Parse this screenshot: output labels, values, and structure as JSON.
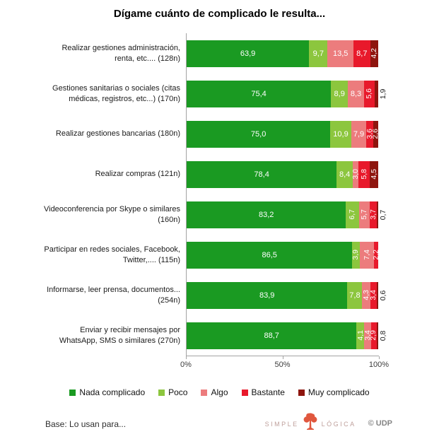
{
  "chart_data": {
    "type": "bar",
    "orientation": "horizontal-stacked",
    "title": "Dígame cuánto de complicado le resulta...",
    "categories": [
      "Realizar gestiones administración, renta, etc.... (128n)",
      "Gestiones sanitarias o sociales (citas médicas, registros, etc...) (170n)",
      "Realizar gestiones bancarias (180n)",
      "Realizar compras (121n)",
      "Videoconferencia por Skype o similares (160n)",
      "Participar en redes sociales, Facebook, Twitter,.... (115n)",
      "Informarse, leer prensa, documentos... (254n)",
      "Enviar y recibir mensajes por WhatsApp, SMS o similares (270n)"
    ],
    "series": [
      {
        "name": "Nada complicado",
        "key": "nada",
        "color": "#1a9a22",
        "values": [
          63.9,
          75.4,
          75.0,
          78.4,
          83.2,
          86.5,
          83.9,
          88.7
        ]
      },
      {
        "name": "Poco",
        "key": "poco",
        "color": "#8cc63e",
        "values": [
          9.7,
          8.9,
          10.9,
          8.4,
          6.7,
          3.9,
          7.8,
          4.1
        ]
      },
      {
        "name": "Algo",
        "key": "algo",
        "color": "#ec7c7d",
        "values": [
          13.5,
          8.3,
          7.9,
          3.0,
          5.7,
          7.4,
          4.3,
          3.4
        ]
      },
      {
        "name": "Bastante",
        "key": "bastante",
        "color": "#e8192b",
        "values": [
          8.7,
          5.6,
          3.6,
          5.8,
          3.7,
          2.2,
          3.4,
          2.9
        ]
      },
      {
        "name": "Muy complicado",
        "key": "muy",
        "color": "#8e150e",
        "values": [
          4.2,
          1.9,
          2.6,
          4.5,
          0.7,
          0,
          0.6,
          0.8
        ]
      }
    ],
    "xlim": [
      0,
      100
    ],
    "x_ticks": [
      {
        "label": "0%",
        "pos": 0
      },
      {
        "label": "50%",
        "pos": 50
      },
      {
        "label": "100%",
        "pos": 100
      }
    ],
    "legend_position": "bottom",
    "value_format": "one-decimal-comma"
  },
  "footer": {
    "base_note": "Base: Lo usan para...",
    "brand": {
      "left": "SIMPLE",
      "right": "LÓGICA"
    },
    "copyright": "© UDP"
  }
}
